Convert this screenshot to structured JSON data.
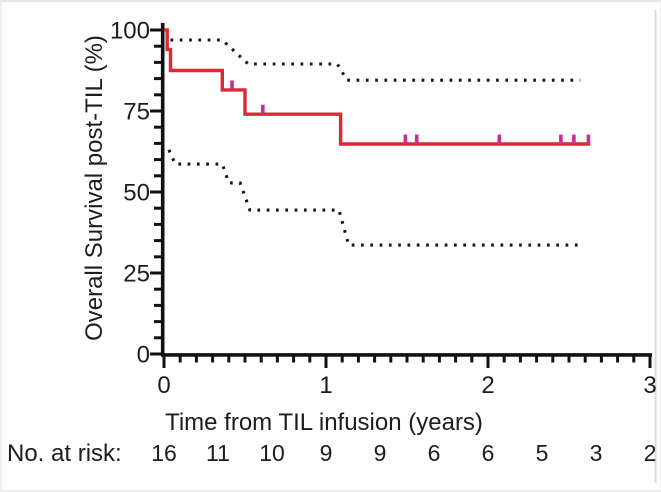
{
  "figure": {
    "y_axis_title": "Overall Survival post-TIL  (%)",
    "x_axis_title": "Time from TIL infusion (years)",
    "at_risk_label": "No. at risk:"
  },
  "colors": {
    "curve": "#d92b35",
    "censor_tick": "#cc2f8b",
    "ci_dots": "#161616",
    "axis": "#121212",
    "text": "#1d1d1d",
    "panel_edge": "#dcdcdc"
  },
  "chart_data": {
    "type": "line",
    "subtype": "kaplan-meier-step",
    "title": "",
    "xlabel": "Time from TIL infusion (years)",
    "ylabel": "Overall Survival post-TIL  (%)",
    "xlim": [
      0,
      3
    ],
    "ylim": [
      0,
      100
    ],
    "x_major_ticks": [
      0,
      1,
      2,
      3
    ],
    "x_minor_tick_step": 0.1,
    "y_major_ticks": [
      0,
      25,
      50,
      75,
      100
    ],
    "y_minor_tick_step": 5,
    "grid": false,
    "legend": "none",
    "series": [
      {
        "name": "Overall Survival post-TIL",
        "style": "solid-step",
        "color": "#d92b35",
        "points": [
          [
            0,
            100
          ],
          [
            0.02,
            100
          ],
          [
            0.02,
            94
          ],
          [
            0.04,
            94
          ],
          [
            0.04,
            87.5
          ],
          [
            0.36,
            87.5
          ],
          [
            0.36,
            81.5
          ],
          [
            0.5,
            81.5
          ],
          [
            0.5,
            74
          ],
          [
            1.09,
            74
          ],
          [
            1.09,
            64.8
          ],
          [
            2.63,
            64.8
          ]
        ]
      },
      {
        "name": "Upper 95% CI",
        "style": "dotted",
        "color": "#161616",
        "points": [
          [
            0.04,
            96.9
          ],
          [
            0.36,
            96.9
          ],
          [
            0.52,
            89.5
          ],
          [
            1.07,
            89.5
          ],
          [
            1.13,
            84.5
          ],
          [
            2.57,
            84.5
          ]
        ]
      },
      {
        "name": "Lower 95% CI",
        "style": "dotted",
        "color": "#161616",
        "points": [
          [
            0.03,
            63
          ],
          [
            0.07,
            58.6
          ],
          [
            0.36,
            58.6
          ],
          [
            0.4,
            52.8
          ],
          [
            0.47,
            52.8
          ],
          [
            0.53,
            44.4
          ],
          [
            1.08,
            44.4
          ],
          [
            1.14,
            33.6
          ],
          [
            2.57,
            33.6
          ]
        ]
      }
    ],
    "censor_marks": [
      {
        "x": 0.42,
        "y": 81.5
      },
      {
        "x": 0.61,
        "y": 74
      },
      {
        "x": 1.49,
        "y": 64.8
      },
      {
        "x": 1.56,
        "y": 64.8
      },
      {
        "x": 2.07,
        "y": 64.8
      },
      {
        "x": 2.45,
        "y": 64.8
      },
      {
        "x": 2.53,
        "y": 64.8
      },
      {
        "x": 2.62,
        "y": 64.8
      }
    ],
    "at_risk": {
      "label": "No. at risk:",
      "times": [
        0,
        0.3333,
        0.6667,
        1,
        1.3333,
        1.6667,
        2,
        2.3333,
        2.6667,
        3
      ],
      "counts": [
        16,
        11,
        10,
        9,
        9,
        6,
        6,
        5,
        3,
        2
      ]
    }
  }
}
